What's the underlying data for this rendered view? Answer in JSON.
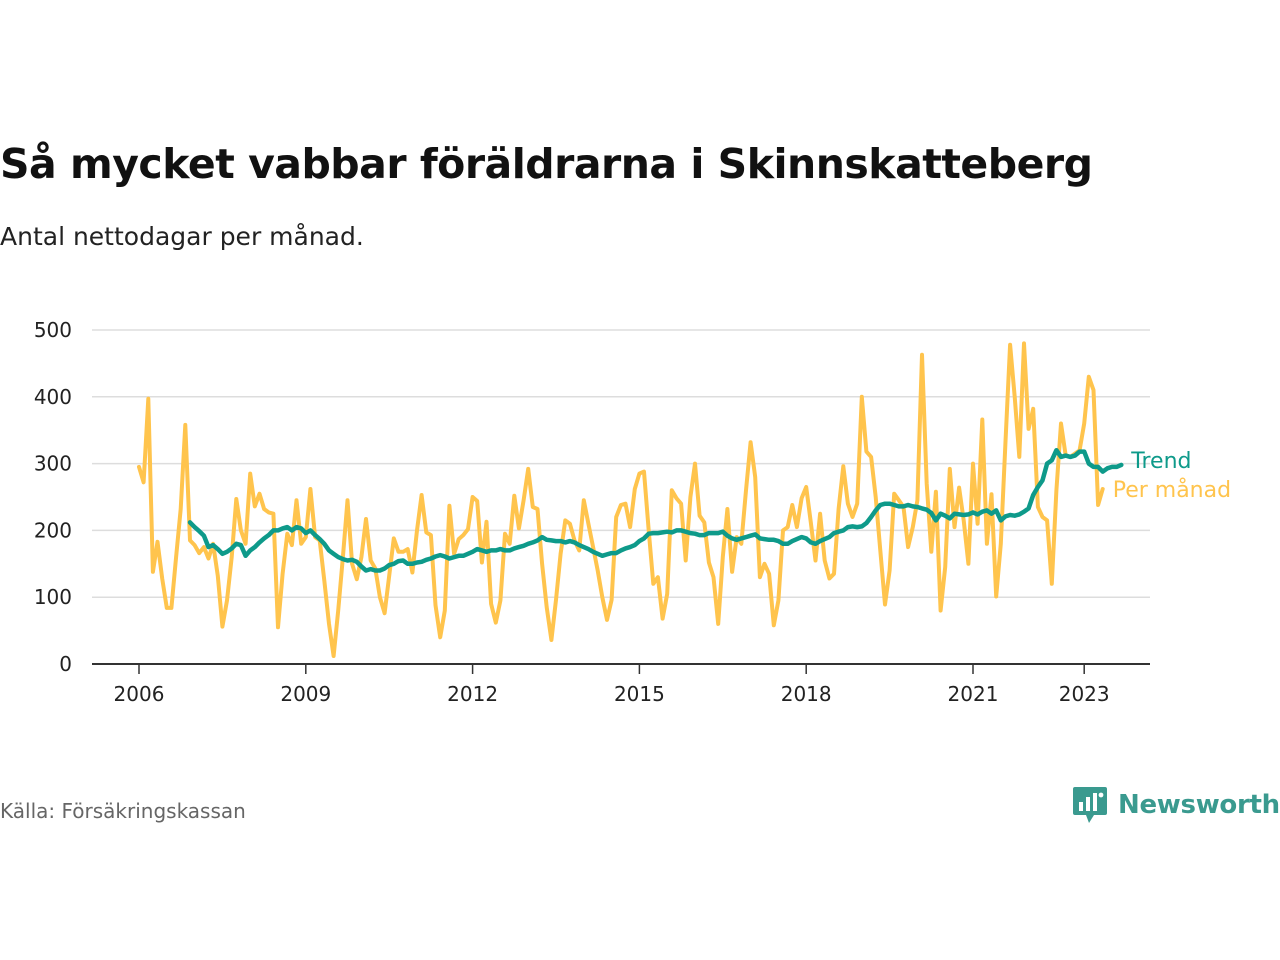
{
  "header": {
    "title": "Så mycket vabbar föräldrarna i Skinnskatteberg",
    "subtitle": "Antal nettodagar per månad."
  },
  "footer": {
    "source": "Källa: Försäkringskassan",
    "brand": "Newsworthy"
  },
  "colors": {
    "per_manad": "#ffc44d",
    "trend": "#0e9a8a",
    "grid": "#dddddd",
    "axis": "#333333",
    "brand": "#3a9a8f"
  },
  "chart_data": {
    "type": "line",
    "title": "Så mycket vabbar föräldrarna i Skinnskatteberg",
    "subtitle": "Antal nettodagar per månad.",
    "xlabel": "",
    "ylabel": "",
    "ylim": [
      0,
      500
    ],
    "yticks": [
      0,
      100,
      200,
      300,
      400,
      500
    ],
    "xticks": [
      {
        "year": 2006,
        "label": "2006"
      },
      {
        "year": 2009,
        "label": "2009"
      },
      {
        "year": 2012,
        "label": "2012"
      },
      {
        "year": 2015,
        "label": "2015"
      },
      {
        "year": 2018,
        "label": "2018"
      },
      {
        "year": 2021,
        "label": "2021"
      },
      {
        "year": 2023,
        "label": "2023"
      }
    ],
    "grid": true,
    "legend": "direct labels at right end",
    "series": [
      {
        "name": "Per månad",
        "start": "2006-01",
        "values": [
          295,
          272,
          397,
          138,
          183,
          128,
          84,
          84,
          160,
          232,
          358,
          185,
          178,
          166,
          175,
          158,
          180,
          132,
          56,
          95,
          160,
          247,
          200,
          180,
          285,
          236,
          255,
          232,
          227,
          225,
          55,
          135,
          195,
          178,
          245,
          180,
          190,
          262,
          190,
          185,
          125,
          60,
          12,
          80,
          160,
          245,
          150,
          127,
          160,
          217,
          155,
          143,
          100,
          76,
          132,
          188,
          168,
          168,
          172,
          137,
          200,
          253,
          197,
          193,
          88,
          40,
          80,
          237,
          165,
          187,
          193,
          202,
          250,
          244,
          152,
          213,
          90,
          62,
          95,
          195,
          180,
          252,
          203,
          245,
          292,
          235,
          232,
          150,
          85,
          36,
          96,
          165,
          215,
          210,
          185,
          170,
          245,
          210,
          175,
          140,
          100,
          66,
          96,
          220,
          238,
          240,
          205,
          262,
          285,
          288,
          200,
          120,
          130,
          68,
          105,
          260,
          248,
          240,
          155,
          250,
          300,
          222,
          212,
          152,
          130,
          60,
          160,
          232,
          138,
          190,
          180,
          260,
          332,
          280,
          130,
          150,
          135,
          58,
          95,
          200,
          205,
          238,
          205,
          248,
          265,
          212,
          155,
          225,
          155,
          128,
          135,
          232,
          296,
          240,
          220,
          240,
          400,
          318,
          310,
          250,
          170,
          89,
          140,
          255,
          245,
          235,
          175,
          205,
          245,
          463,
          270,
          168,
          258,
          80,
          145,
          292,
          205,
          264,
          215,
          150,
          300,
          210,
          366,
          180,
          254,
          101,
          180,
          330,
          478,
          400,
          310,
          480,
          352,
          382,
          235,
          220,
          215,
          120,
          260,
          360,
          312,
          310,
          315,
          320,
          360,
          430,
          410,
          238,
          262
        ]
      },
      {
        "name": "Trend",
        "start": "2006-12",
        "values": [
          212,
          205,
          199,
          192,
          175,
          178,
          172,
          165,
          168,
          173,
          180,
          178,
          162,
          170,
          175,
          182,
          188,
          193,
          200,
          200,
          203,
          205,
          200,
          205,
          203,
          196,
          200,
          193,
          187,
          180,
          170,
          165,
          160,
          157,
          155,
          156,
          153,
          146,
          140,
          142,
          140,
          140,
          143,
          148,
          150,
          154,
          155,
          150,
          150,
          152,
          153,
          156,
          158,
          161,
          163,
          161,
          158,
          160,
          162,
          162,
          165,
          168,
          172,
          170,
          168,
          170,
          170,
          172,
          170,
          170,
          173,
          175,
          177,
          180,
          182,
          185,
          190,
          186,
          185,
          184,
          184,
          182,
          184,
          182,
          178,
          175,
          172,
          168,
          165,
          162,
          164,
          166,
          166,
          170,
          173,
          175,
          178,
          184,
          188,
          195,
          196,
          196,
          197,
          198,
          197,
          200,
          200,
          198,
          196,
          195,
          193,
          193,
          196,
          196,
          196,
          198,
          192,
          188,
          186,
          188,
          190,
          192,
          194,
          188,
          187,
          186,
          186,
          184,
          180,
          180,
          184,
          187,
          190,
          188,
          182,
          180,
          184,
          187,
          190,
          196,
          198,
          200,
          205,
          206,
          205,
          206,
          211,
          220,
          230,
          238,
          240,
          240,
          238,
          236,
          236,
          238,
          236,
          235,
          233,
          231,
          226,
          215,
          225,
          222,
          218,
          225,
          224,
          223,
          224,
          227,
          224,
          228,
          230,
          225,
          230,
          215,
          221,
          223,
          222,
          224,
          228,
          233,
          253,
          265,
          275,
          300,
          305,
          320,
          310,
          312,
          310,
          312,
          318,
          318,
          300,
          295,
          295,
          288,
          293,
          295,
          295,
          298
        ]
      }
    ]
  }
}
